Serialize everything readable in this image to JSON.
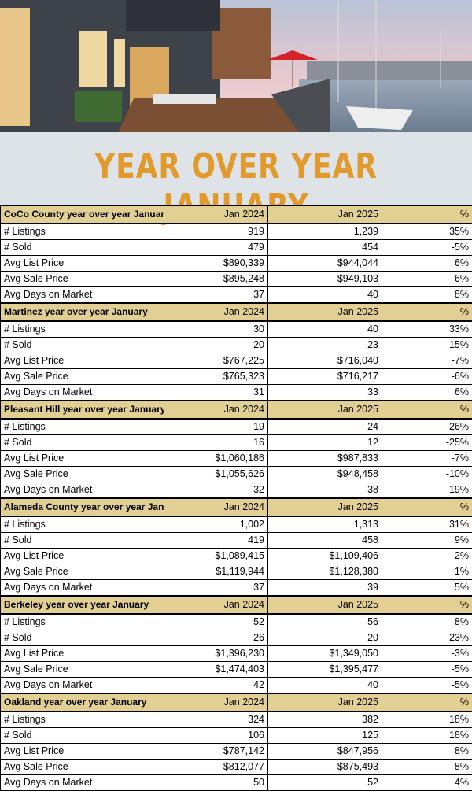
{
  "title": "YEAR OVER YEAR JANUARY",
  "sections": [
    {
      "title": "CoCo County year over year January",
      "columns": [
        "Jan 2024",
        "Jan 2025",
        "%"
      ],
      "rows": [
        [
          "# Listings",
          "919",
          "1,239",
          "35%"
        ],
        [
          "# Sold",
          "479",
          "454",
          "-5%"
        ],
        [
          "Avg List Price",
          "$890,339",
          "$944,044",
          "6%"
        ],
        [
          "Avg Sale Price",
          "$895,248",
          "$949,103",
          "6%"
        ],
        [
          "Avg Days on Market",
          "37",
          "40",
          "8%"
        ]
      ]
    },
    {
      "title": "Martinez year over year January",
      "columns": [
        "Jan 2024",
        "Jan 2025",
        "%"
      ],
      "rows": [
        [
          "# Listings",
          "30",
          "40",
          "33%"
        ],
        [
          "# Sold",
          "20",
          "23",
          "15%"
        ],
        [
          "Avg List Price",
          "$767,225",
          "$716,040",
          "-7%"
        ],
        [
          "Avg Sale Price",
          "$765,323",
          "$716,217",
          "-6%"
        ],
        [
          "Avg Days on Market",
          "31",
          "33",
          "6%"
        ]
      ]
    },
    {
      "title": "Pleasant Hill year over year January",
      "columns": [
        "Jan 2024",
        "Jan 2025",
        "%"
      ],
      "rows": [
        [
          "# Listings",
          "19",
          "24",
          "26%"
        ],
        [
          "# Sold",
          "16",
          "12",
          "-25%"
        ],
        [
          "Avg List Price",
          "$1,060,186",
          "$987,833",
          "-7%"
        ],
        [
          "Avg Sale Price",
          "$1,055,626",
          "$948,458",
          "-10%"
        ],
        [
          "Avg Days on Market",
          "32",
          "38",
          "19%"
        ]
      ]
    },
    {
      "title": "Alameda County year over year January",
      "columns": [
        "Jan 2024",
        "Jan 2025",
        "%"
      ],
      "rows": [
        [
          "# Listings",
          "1,002",
          "1,313",
          "31%"
        ],
        [
          "# Sold",
          "419",
          "458",
          "9%"
        ],
        [
          "Avg List Price",
          "$1,089,415",
          "$1,109,406",
          "2%"
        ],
        [
          "Avg Sale Price",
          "$1,119,944",
          "$1,128,380",
          "1%"
        ],
        [
          "Avg Days on Market",
          "37",
          "39",
          "5%"
        ]
      ]
    },
    {
      "title": "Berkeley year over year January",
      "columns": [
        "Jan 2024",
        "Jan 2025",
        "%"
      ],
      "rows": [
        [
          "# Listings",
          "52",
          "56",
          "8%"
        ],
        [
          "# Sold",
          "26",
          "20",
          "-23%"
        ],
        [
          "Avg List Price",
          "$1,396,230",
          "$1,349,050",
          "-3%"
        ],
        [
          "Avg Sale Price",
          "$1,474,403",
          "$1,395,477",
          "-5%"
        ],
        [
          "Avg Days on Market",
          "42",
          "40",
          "-5%"
        ]
      ]
    },
    {
      "title": "Oakland year over year January",
      "columns": [
        "Jan 2024",
        "Jan 2025",
        "%"
      ],
      "rows": [
        [
          "# Listings",
          "324",
          "382",
          "18%"
        ],
        [
          "# Sold",
          "106",
          "125",
          "18%"
        ],
        [
          "Avg List Price",
          "$787,142",
          "$847,956",
          "8%"
        ],
        [
          "Avg Sale Price",
          "$812,077",
          "$875,493",
          "8%"
        ],
        [
          "Avg Days on Market",
          "50",
          "52",
          "4%"
        ]
      ]
    }
  ]
}
